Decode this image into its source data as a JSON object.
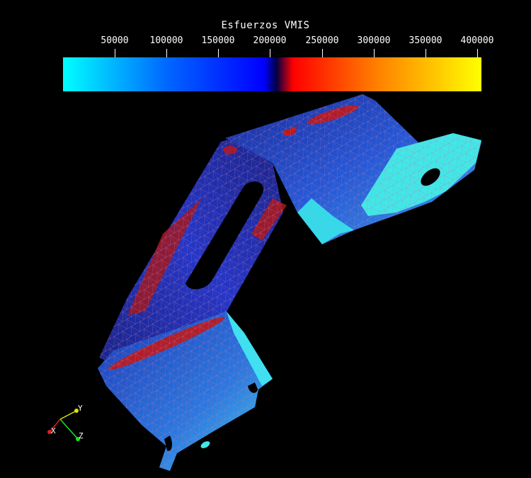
{
  "legend": {
    "title": "Esfuerzos VMIS",
    "ticks": [
      "50000",
      "100000",
      "150000",
      "200000",
      "250000",
      "300000",
      "350000",
      "400000"
    ],
    "tick_values": [
      50000,
      100000,
      150000,
      200000,
      250000,
      300000,
      350000,
      400000
    ],
    "range": [
      0,
      405000
    ],
    "colors": [
      "#00ffff",
      "#0066ff",
      "#0000ff",
      "#000044",
      "#ff0000",
      "#ff8000",
      "#ffff00"
    ]
  },
  "axes": {
    "x_label": "X",
    "y_label": "Y",
    "z_label": "Z",
    "x_color": "#e02020",
    "y_color": "#e0e000",
    "z_color": "#20e020"
  },
  "model": {
    "description_colors": {
      "low": "#40f0f0",
      "mid": "#1e50d8",
      "dark": "#1a1a9a",
      "high": "#c01818"
    }
  }
}
